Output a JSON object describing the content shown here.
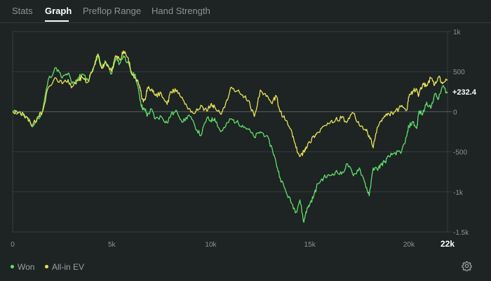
{
  "tabs": [
    {
      "label": "Stats",
      "active": false
    },
    {
      "label": "Graph",
      "active": true
    },
    {
      "label": "Preflop Range",
      "active": false
    },
    {
      "label": "Hand Strength",
      "active": false
    }
  ],
  "legend": {
    "won_label": "Won",
    "ev_label": "All-in EV"
  },
  "current_value_label": "+232.4",
  "x_max_label": "22k",
  "settings_icon": "gear-icon",
  "colors": {
    "won": "#5fe06b",
    "ev": "#e8e45a",
    "background": "#1e2323",
    "grid": "#353b3b",
    "zero_line": "#5a6161"
  },
  "chart_data": {
    "type": "line",
    "title": "",
    "xlabel": "",
    "ylabel": "",
    "x_ticks": [
      "0",
      "5k",
      "10k",
      "15k",
      "20k"
    ],
    "x_tick_values": [
      0,
      5000,
      10000,
      15000,
      20000
    ],
    "y_ticks": [
      "1k",
      "500",
      "0",
      "-500",
      "-1k",
      "-1.5k"
    ],
    "y_tick_values": [
      1000,
      500,
      0,
      -500,
      -1000,
      -1500
    ],
    "xlim": [
      0,
      21950
    ],
    "ylim": [
      -1500,
      1000
    ],
    "grid": true,
    "legend_position": "bottom-left",
    "series": [
      {
        "name": "Won",
        "color": "#5fe06b",
        "x": [
          0,
          300,
          700,
          1000,
          1300,
          1500,
          1800,
          2200,
          2500,
          2800,
          3000,
          3300,
          3500,
          3800,
          4100,
          4300,
          4500,
          4700,
          5000,
          5200,
          5400,
          5600,
          5800,
          6000,
          6200,
          6400,
          6500,
          6600,
          6700,
          6800,
          7000,
          7200,
          7500,
          7800,
          8000,
          8300,
          8600,
          8900,
          9200,
          9500,
          9800,
          10000,
          10200,
          10500,
          10700,
          11000,
          11300,
          11600,
          11900,
          12200,
          12500,
          12800,
          13100,
          13300,
          13500,
          13800,
          14100,
          14300,
          14500,
          14700,
          14800,
          15000,
          15200,
          15400,
          15700,
          16000,
          16300,
          16600,
          16900,
          17200,
          17500,
          17800,
          18000,
          18200,
          18400,
          18600,
          18800,
          19000,
          19300,
          19600,
          19900,
          20000,
          20200,
          20400,
          20500,
          20700,
          20900,
          21100,
          21300,
          21500,
          21700,
          21950
        ],
        "y": [
          0,
          -10,
          -60,
          -190,
          -80,
          0,
          400,
          550,
          420,
          480,
          350,
          420,
          470,
          390,
          560,
          720,
          540,
          620,
          470,
          660,
          600,
          700,
          620,
          470,
          450,
          200,
          80,
          30,
          20,
          -50,
          30,
          -90,
          -60,
          -140,
          -30,
          0,
          -130,
          -40,
          -180,
          -300,
          -80,
          -110,
          -80,
          -250,
          -200,
          -90,
          -130,
          -170,
          -220,
          -320,
          -250,
          -300,
          -460,
          -640,
          -820,
          -1000,
          -1150,
          -1250,
          -1100,
          -1380,
          -1250,
          -1150,
          -1050,
          -900,
          -820,
          -800,
          -750,
          -780,
          -650,
          -800,
          -700,
          -900,
          -1050,
          -700,
          -720,
          -660,
          -620,
          -560,
          -510,
          -520,
          -300,
          -180,
          -130,
          -210,
          0,
          -30,
          120,
          40,
          220,
          160,
          320,
          232.4
        ]
      },
      {
        "name": "All-in EV",
        "color": "#e8e45a",
        "x": [
          0,
          300,
          700,
          1000,
          1300,
          1500,
          1800,
          2200,
          2500,
          2800,
          3000,
          3300,
          3500,
          3800,
          4100,
          4300,
          4500,
          4700,
          5000,
          5200,
          5400,
          5600,
          5800,
          6000,
          6200,
          6400,
          6500,
          6600,
          6700,
          6800,
          7000,
          7200,
          7500,
          7800,
          8000,
          8300,
          8600,
          8900,
          9200,
          9500,
          9800,
          10000,
          10200,
          10500,
          10700,
          11000,
          11300,
          11600,
          11900,
          12200,
          12500,
          12800,
          13100,
          13300,
          13500,
          13800,
          14100,
          14300,
          14500,
          14700,
          14800,
          15000,
          15200,
          15400,
          15700,
          16000,
          16300,
          16600,
          16900,
          17200,
          17500,
          17800,
          18000,
          18200,
          18400,
          18600,
          18800,
          19000,
          19300,
          19600,
          19900,
          20000,
          20200,
          20400,
          20500,
          20700,
          20900,
          21100,
          21300,
          21500,
          21700,
          21950
        ],
        "y": [
          0,
          -10,
          -60,
          -170,
          -60,
          0,
          300,
          420,
          350,
          400,
          310,
          390,
          430,
          370,
          560,
          720,
          540,
          620,
          500,
          700,
          650,
          760,
          680,
          500,
          420,
          330,
          200,
          120,
          150,
          300,
          280,
          200,
          230,
          90,
          250,
          270,
          150,
          40,
          -20,
          80,
          10,
          90,
          60,
          -30,
          50,
          300,
          260,
          210,
          140,
          -60,
          270,
          190,
          100,
          200,
          0,
          -110,
          -260,
          -450,
          -560,
          -500,
          -440,
          -380,
          -300,
          -260,
          -180,
          -150,
          -100,
          -80,
          -120,
          -20,
          -170,
          -220,
          -300,
          -450,
          -200,
          -110,
          -60,
          -30,
          0,
          60,
          20,
          180,
          260,
          280,
          200,
          350,
          330,
          420,
          330,
          430,
          350,
          400
        ]
      }
    ]
  }
}
